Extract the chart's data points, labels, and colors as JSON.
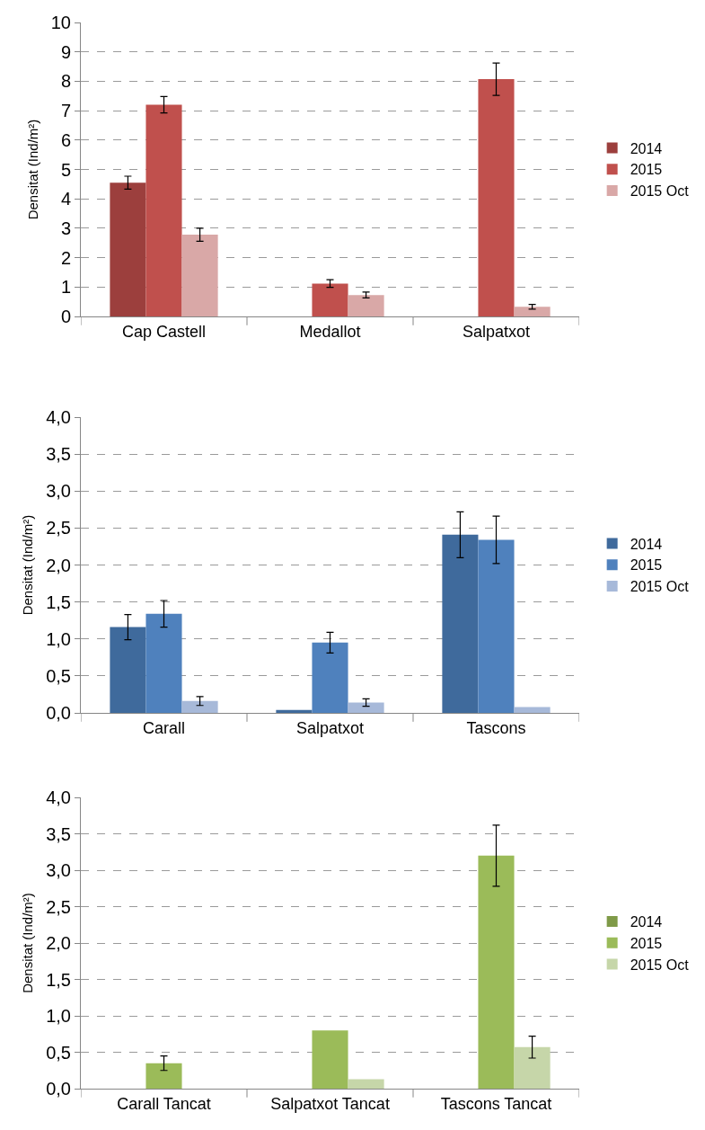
{
  "chart_data": [
    {
      "type": "bar",
      "ylabel": "Densitat (Ind/m²)",
      "categories": [
        "Cap Castell",
        "Medallot",
        "Salpatxot"
      ],
      "ylim": [
        0,
        10
      ],
      "yticks": [
        0,
        1,
        2,
        3,
        4,
        5,
        6,
        7,
        8,
        9,
        10
      ],
      "grid": "y",
      "legend": "right",
      "series": [
        {
          "name": "2014",
          "color": "#9c3f3d",
          "values": [
            4.55,
            null,
            null
          ],
          "errors": [
            0.22,
            null,
            null
          ]
        },
        {
          "name": "2015",
          "color": "#c0504d",
          "values": [
            7.2,
            1.12,
            8.07
          ],
          "errors": [
            0.28,
            0.13,
            0.55
          ]
        },
        {
          "name": "2015 Oct",
          "color": "#d9a8a7",
          "values": [
            2.78,
            0.73,
            0.33
          ],
          "errors": [
            0.22,
            0.1,
            0.08
          ]
        }
      ]
    },
    {
      "type": "bar",
      "ylabel": "Densitat (Ind/m²)",
      "categories": [
        "Carall",
        "Salpatxot",
        "Tascons"
      ],
      "ylim": [
        0,
        4
      ],
      "yticks": [
        {
          "value": 0,
          "label": "0,0"
        },
        {
          "value": 0.5,
          "label": "0,5"
        },
        {
          "value": 1,
          "label": "1,0"
        },
        {
          "value": 1.5,
          "label": "1,5"
        },
        {
          "value": 2,
          "label": "2,0"
        },
        {
          "value": 2.5,
          "label": "2,5"
        },
        {
          "value": 3,
          "label": "3,0"
        },
        {
          "value": 3.5,
          "label": "3,5"
        },
        {
          "value": 4,
          "label": "4,0"
        }
      ],
      "grid": "y",
      "legend": "right",
      "series": [
        {
          "name": "2014",
          "color": "#3f6a9c",
          "values": [
            1.16,
            0.04,
            2.41
          ],
          "errors": [
            0.17,
            null,
            0.31
          ]
        },
        {
          "name": "2015",
          "color": "#4f81bd",
          "values": [
            1.34,
            0.95,
            2.34
          ],
          "errors": [
            0.18,
            0.14,
            0.32
          ]
        },
        {
          "name": "2015 Oct",
          "color": "#a7b9d9",
          "values": [
            0.16,
            0.14,
            0.08
          ],
          "errors": [
            0.06,
            0.05,
            null
          ]
        }
      ]
    },
    {
      "type": "bar",
      "ylabel": "Densitat (Ind/m²)",
      "categories": [
        "Carall Tancat",
        "Salpatxot Tancat",
        "Tascons Tancat"
      ],
      "ylim": [
        0,
        4
      ],
      "yticks": [
        {
          "value": 0,
          "label": "0,0"
        },
        {
          "value": 0.5,
          "label": "0,5"
        },
        {
          "value": 1,
          "label": "1,0"
        },
        {
          "value": 1.5,
          "label": "1,5"
        },
        {
          "value": 2,
          "label": "2,0"
        },
        {
          "value": 2.5,
          "label": "2,5"
        },
        {
          "value": 3,
          "label": "3,0"
        },
        {
          "value": 3.5,
          "label": "3,5"
        },
        {
          "value": 4,
          "label": "4,0"
        }
      ],
      "grid": "y",
      "legend": "right",
      "series": [
        {
          "name": "2014",
          "color": "#7f9a48",
          "values": [
            null,
            null,
            null
          ],
          "errors": [
            null,
            null,
            null
          ]
        },
        {
          "name": "2015",
          "color": "#9bbb59",
          "values": [
            0.35,
            0.8,
            3.2
          ],
          "errors": [
            0.1,
            null,
            0.42
          ]
        },
        {
          "name": "2015 Oct",
          "color": "#c6d6a9",
          "values": [
            null,
            0.13,
            0.57
          ],
          "errors": [
            null,
            null,
            0.15
          ]
        }
      ]
    }
  ]
}
